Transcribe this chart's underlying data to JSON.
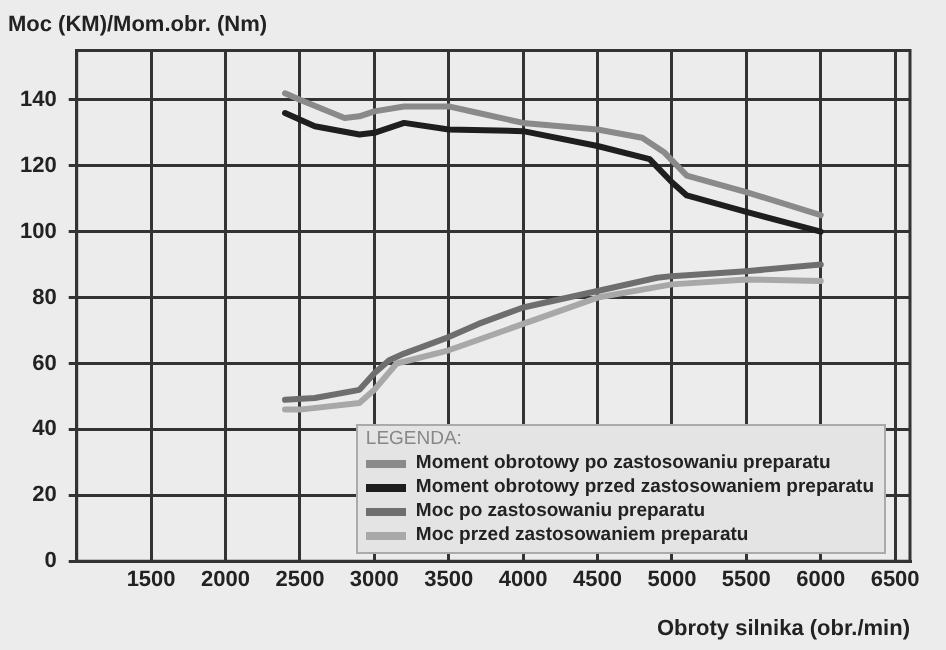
{
  "chart_data": {
    "type": "line",
    "ylabel": "Moc (KM)/Mom.obr. (Nm)",
    "xlabel": "Obroty silnika (obr./min)",
    "legend_title": "LEGENDA:",
    "xlim": [
      1000,
      6600
    ],
    "xticks": [
      1500,
      2000,
      2500,
      3000,
      3500,
      4000,
      4500,
      5000,
      5500,
      6000,
      6500
    ],
    "ylim": [
      0,
      155
    ],
    "yticks": [
      0,
      20,
      40,
      60,
      80,
      100,
      120,
      140
    ],
    "grid": true,
    "legend": "bottom right",
    "marker": "none",
    "line_style": "solid",
    "series": [
      {
        "name": "Moment obrotowy po zastosowaniu preparatu",
        "color": "#8a8a8a",
        "x": [
          2400,
          2500,
          2800,
          2900,
          3000,
          3200,
          3500,
          3700,
          4000,
          4500,
          4800,
          4950,
          5100,
          5500,
          6000
        ],
        "values": [
          142,
          140,
          134.5,
          135,
          136.5,
          138,
          138,
          136,
          133,
          131,
          128.5,
          124,
          117,
          112,
          105
        ]
      },
      {
        "name": "Moment obrotowy przed zastosowaniem preparatu",
        "color": "#1e1e1e",
        "x": [
          2400,
          2600,
          2900,
          3000,
          3200,
          3500,
          4000,
          4500,
          4850,
          5000,
          5100,
          5500,
          6000
        ],
        "values": [
          136,
          132,
          129.5,
          130,
          133,
          131,
          130.5,
          126,
          122,
          115,
          111,
          106,
          100
        ]
      },
      {
        "name": "Moc po zastosowaniu preparatu",
        "color": "#6e6e6e",
        "x": [
          2400,
          2600,
          2900,
          3000,
          3100,
          3200,
          3500,
          3700,
          4000,
          4500,
          4900,
          5000,
          5500,
          6000
        ],
        "values": [
          49,
          49.5,
          52,
          57,
          61,
          63,
          68,
          72,
          77,
          82,
          86,
          86.5,
          88,
          90
        ]
      },
      {
        "name": "Moc przed zastosowaniem preparatu",
        "color": "#a8a8a8",
        "x": [
          2400,
          2500,
          2900,
          3000,
          3150,
          3500,
          4000,
          4500,
          5000,
          5500,
          6000
        ],
        "values": [
          46,
          46,
          48,
          52,
          60,
          64,
          72,
          80,
          84,
          85.5,
          85
        ]
      }
    ]
  }
}
